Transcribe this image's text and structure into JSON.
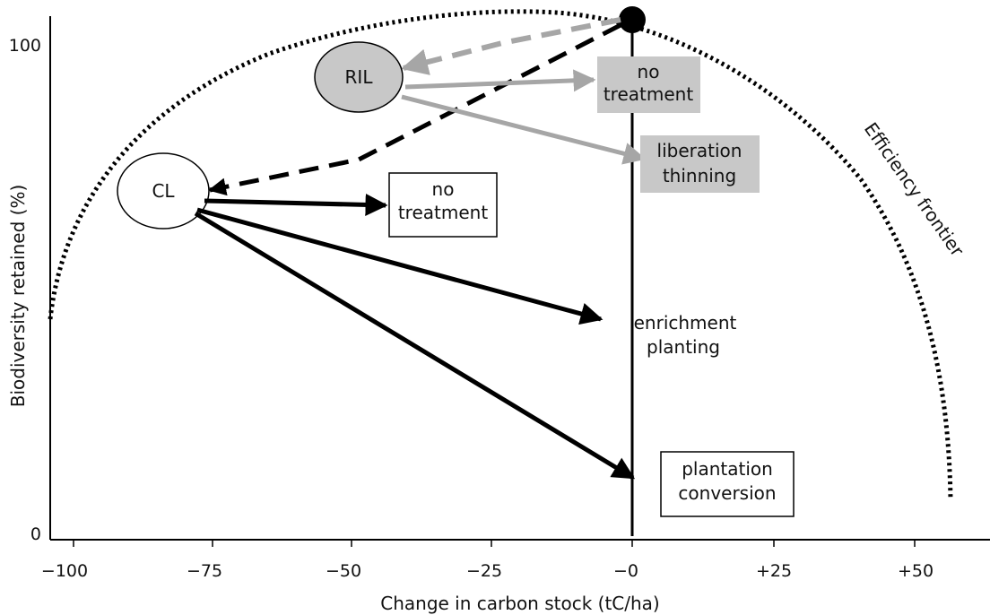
{
  "axes": {
    "xlabel": "Change in carbon stock (tC/ha)",
    "ylabel": "Biodiversity retained (%)",
    "x_ticks": [
      "−100",
      "−75",
      "−50",
      "−25",
      "−0",
      "+25",
      "+50"
    ],
    "y_ticks": [
      "100",
      "0"
    ]
  },
  "frontier_label": "Efficiency frontier",
  "nodes": {
    "ril": "RIL",
    "cl": "CL"
  },
  "boxes": {
    "ril_no_treatment": [
      "no",
      "treatment"
    ],
    "ril_liberation_thinning": [
      "liberation",
      "thinning"
    ],
    "cl_no_treatment": [
      "no",
      "treatment"
    ],
    "cl_enrichment_planting": [
      "enrichment",
      "planting"
    ],
    "cl_plantation_conversion": [
      "plantation",
      "conversion"
    ]
  },
  "colors": {
    "grey_arrow": "#a6a6a6",
    "grey_box": "#c8c8c8",
    "ril_fill": "#c8c8c8",
    "black": "#000000"
  }
}
